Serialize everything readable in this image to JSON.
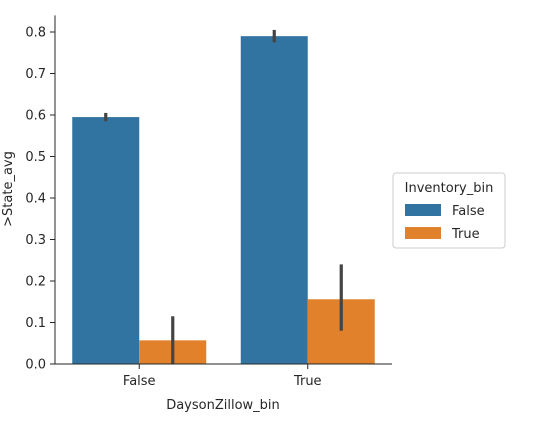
{
  "chart_data": {
    "type": "bar",
    "xlabel": "DaysonZillow_bin",
    "ylabel": ">State_avg",
    "categories": [
      "False",
      "True"
    ],
    "series": [
      {
        "name": "False",
        "color": "#3274a1",
        "values": [
          0.595,
          0.79
        ],
        "ci": [
          [
            0.585,
            0.605
          ],
          [
            0.775,
            0.805
          ]
        ]
      },
      {
        "name": "True",
        "color": "#e1812c",
        "values": [
          0.057,
          0.156
        ],
        "ci": [
          [
            0.0,
            0.115
          ],
          [
            0.08,
            0.24
          ]
        ]
      }
    ],
    "ylim": [
      0,
      0.84
    ],
    "yticks": [
      "0.0",
      "0.1",
      "0.2",
      "0.3",
      "0.4",
      "0.5",
      "0.6",
      "0.7",
      "0.8"
    ],
    "grid": false,
    "legend": {
      "title": "Inventory_bin",
      "placement": "right"
    },
    "errorbar_color": "#444444"
  }
}
